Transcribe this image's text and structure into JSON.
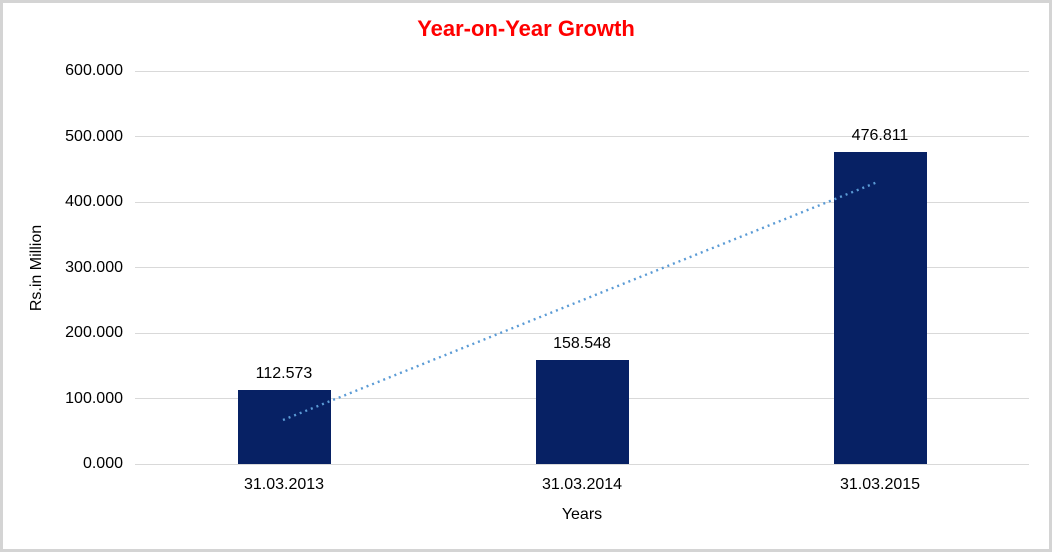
{
  "window": {
    "background_color": "#ffffff",
    "border_color": "#d4d4d4"
  },
  "chart_data": {
    "type": "bar",
    "title": "Year-on-Year Growth",
    "title_color": "#ff0000",
    "categories": [
      "31.03.2013",
      "31.03.2014",
      "31.03.2015"
    ],
    "values": [
      112.573,
      158.548,
      476.811
    ],
    "data_labels": [
      "112.573",
      "158.548",
      "476.811"
    ],
    "xlabel": "Years",
    "ylabel": "Rs.in Million",
    "ylim": [
      0,
      600
    ],
    "yticks": [
      {
        "value": 0,
        "label": "0.000"
      },
      {
        "value": 100,
        "label": "100.000"
      },
      {
        "value": 200,
        "label": "200.000"
      },
      {
        "value": 300,
        "label": "300.000"
      },
      {
        "value": 400,
        "label": "400.000"
      },
      {
        "value": 500,
        "label": "500.000"
      },
      {
        "value": 600,
        "label": "600.000"
      }
    ],
    "grid": "horizontal",
    "legend": "none",
    "bar_color": "#072164",
    "gridline_color": "#d9d9d9",
    "axis_line_color": "#d9d9d9",
    "label_color": "#000000",
    "trendline": {
      "type": "linear",
      "style": "dotted",
      "color": "#5b9bd5",
      "start_value": 67.2,
      "end_value": 431.4
    }
  }
}
